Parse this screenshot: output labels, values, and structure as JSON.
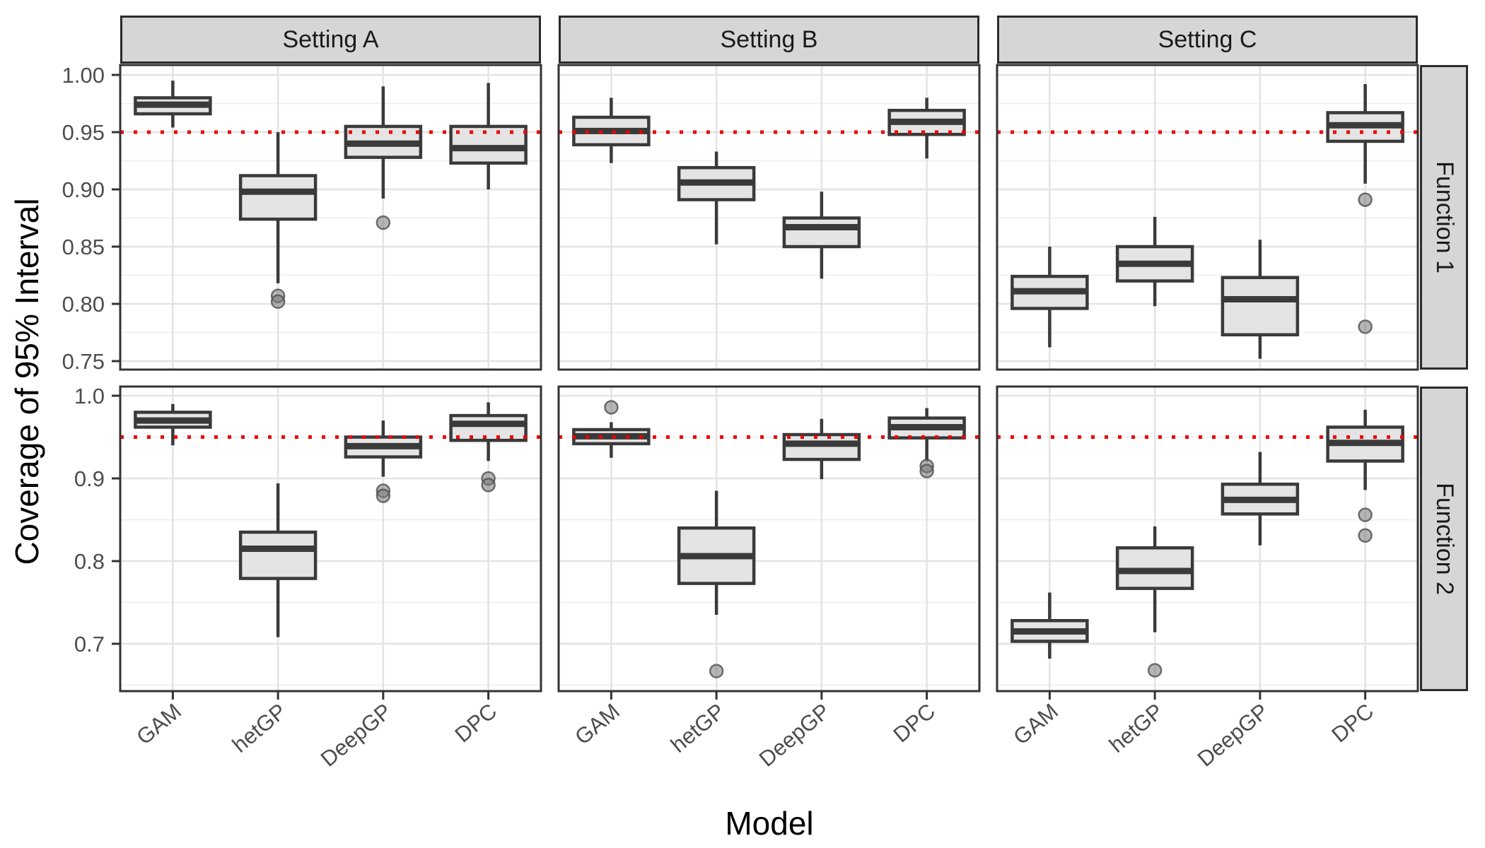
{
  "titles": {
    "y_axis": "Coverage of 95% Interval",
    "x_axis": "Model"
  },
  "facets": {
    "columns": [
      "Setting A",
      "Setting B",
      "Setting C"
    ],
    "rows": [
      "Function 1",
      "Function 2"
    ]
  },
  "models": [
    "GAM",
    "hetGP",
    "DeepGP",
    "DPC"
  ],
  "reference_line": {
    "value": 0.95,
    "color": "#EE0000",
    "style": "dotted"
  },
  "axes": {
    "row1": {
      "tick_values": [
        1.0,
        0.95,
        0.9,
        0.85,
        0.8,
        0.75
      ],
      "tick_labels": [
        "1.00",
        "0.95",
        "0.90",
        "0.85",
        "0.80",
        "0.75"
      ],
      "minor_values": [
        0.975,
        0.925,
        0.875,
        0.825,
        0.775
      ],
      "range": [
        0.7426,
        1.0086
      ]
    },
    "row2": {
      "tick_values": [
        1.0,
        0.9,
        0.8,
        0.7
      ],
      "tick_labels": [
        "1.0",
        "0.9",
        "0.8",
        "0.7"
      ],
      "minor_values": [
        0.95,
        0.85,
        0.75,
        0.65
      ],
      "range": [
        0.6427,
        1.0111
      ]
    }
  },
  "style": {
    "box_fill": "#E4E4E4",
    "box_stroke": "#3A3A3A",
    "grid_major": "#E3E3E3",
    "grid_minor": "#F0F0F0",
    "panel_border": "#333333",
    "strip_fill": "#D6D6D6",
    "tick_label_color": "#4D4D4D",
    "outlier_fill": "#787878",
    "outlier_stroke": "#505050"
  },
  "chart_data": {
    "type": "boxplot",
    "title": "",
    "xlabel": "Model",
    "ylabel": "Coverage of 95% Interval",
    "grid": true,
    "facet_grid": {
      "rows": [
        "Function 1",
        "Function 2"
      ],
      "columns": [
        "Setting A",
        "Setting B",
        "Setting C"
      ]
    },
    "categories": [
      "GAM",
      "hetGP",
      "DeepGP",
      "DPC"
    ],
    "reference_value": 0.95,
    "panels": [
      {
        "row": "Function 1",
        "col": "Setting A",
        "boxes": [
          {
            "model": "GAM",
            "whisker_low": 0.954,
            "q1": 0.966,
            "median": 0.974,
            "q3": 0.98,
            "whisker_high": 0.995,
            "outliers": []
          },
          {
            "model": "hetGP",
            "whisker_low": 0.818,
            "q1": 0.874,
            "median": 0.898,
            "q3": 0.912,
            "whisker_high": 0.95,
            "outliers": [
              0.807,
              0.802
            ]
          },
          {
            "model": "DeepGP",
            "whisker_low": 0.892,
            "q1": 0.928,
            "median": 0.94,
            "q3": 0.955,
            "whisker_high": 0.99,
            "outliers": [
              0.871
            ]
          },
          {
            "model": "DPC",
            "whisker_low": 0.9,
            "q1": 0.923,
            "median": 0.936,
            "q3": 0.955,
            "whisker_high": 0.993,
            "outliers": []
          }
        ]
      },
      {
        "row": "Function 1",
        "col": "Setting B",
        "boxes": [
          {
            "model": "GAM",
            "whisker_low": 0.923,
            "q1": 0.939,
            "median": 0.951,
            "q3": 0.963,
            "whisker_high": 0.98,
            "outliers": []
          },
          {
            "model": "hetGP",
            "whisker_low": 0.852,
            "q1": 0.891,
            "median": 0.906,
            "q3": 0.919,
            "whisker_high": 0.933,
            "outliers": []
          },
          {
            "model": "DeepGP",
            "whisker_low": 0.822,
            "q1": 0.85,
            "median": 0.867,
            "q3": 0.875,
            "whisker_high": 0.898,
            "outliers": []
          },
          {
            "model": "DPC",
            "whisker_low": 0.927,
            "q1": 0.948,
            "median": 0.959,
            "q3": 0.969,
            "whisker_high": 0.98,
            "outliers": []
          }
        ]
      },
      {
        "row": "Function 1",
        "col": "Setting C",
        "boxes": [
          {
            "model": "GAM",
            "whisker_low": 0.762,
            "q1": 0.796,
            "median": 0.811,
            "q3": 0.824,
            "whisker_high": 0.85,
            "outliers": []
          },
          {
            "model": "hetGP",
            "whisker_low": 0.798,
            "q1": 0.82,
            "median": 0.835,
            "q3": 0.85,
            "whisker_high": 0.876,
            "outliers": []
          },
          {
            "model": "DeepGP",
            "whisker_low": 0.752,
            "q1": 0.773,
            "median": 0.804,
            "q3": 0.823,
            "whisker_high": 0.856,
            "outliers": []
          },
          {
            "model": "DPC",
            "whisker_low": 0.905,
            "q1": 0.942,
            "median": 0.956,
            "q3": 0.967,
            "whisker_high": 0.992,
            "outliers": [
              0.891,
              0.78
            ]
          }
        ]
      },
      {
        "row": "Function 2",
        "col": "Setting A",
        "boxes": [
          {
            "model": "GAM",
            "whisker_low": 0.94,
            "q1": 0.962,
            "median": 0.97,
            "q3": 0.98,
            "whisker_high": 0.99,
            "outliers": []
          },
          {
            "model": "hetGP",
            "whisker_low": 0.708,
            "q1": 0.779,
            "median": 0.815,
            "q3": 0.835,
            "whisker_high": 0.894,
            "outliers": []
          },
          {
            "model": "DeepGP",
            "whisker_low": 0.902,
            "q1": 0.926,
            "median": 0.939,
            "q3": 0.95,
            "whisker_high": 0.97,
            "outliers": [
              0.885,
              0.879
            ]
          },
          {
            "model": "DPC",
            "whisker_low": 0.921,
            "q1": 0.946,
            "median": 0.966,
            "q3": 0.976,
            "whisker_high": 0.992,
            "outliers": [
              0.9,
              0.892
            ]
          }
        ]
      },
      {
        "row": "Function 2",
        "col": "Setting B",
        "boxes": [
          {
            "model": "GAM",
            "whisker_low": 0.925,
            "q1": 0.942,
            "median": 0.951,
            "q3": 0.959,
            "whisker_high": 0.968,
            "outliers": [
              0.986
            ]
          },
          {
            "model": "hetGP",
            "whisker_low": 0.735,
            "q1": 0.773,
            "median": 0.806,
            "q3": 0.84,
            "whisker_high": 0.885,
            "outliers": [
              0.667
            ]
          },
          {
            "model": "DeepGP",
            "whisker_low": 0.899,
            "q1": 0.923,
            "median": 0.942,
            "q3": 0.953,
            "whisker_high": 0.972,
            "outliers": []
          },
          {
            "model": "DPC",
            "whisker_low": 0.921,
            "q1": 0.949,
            "median": 0.962,
            "q3": 0.973,
            "whisker_high": 0.985,
            "outliers": [
              0.915,
              0.909
            ]
          }
        ]
      },
      {
        "row": "Function 2",
        "col": "Setting C",
        "boxes": [
          {
            "model": "GAM",
            "whisker_low": 0.682,
            "q1": 0.703,
            "median": 0.715,
            "q3": 0.728,
            "whisker_high": 0.762,
            "outliers": []
          },
          {
            "model": "hetGP",
            "whisker_low": 0.714,
            "q1": 0.767,
            "median": 0.788,
            "q3": 0.816,
            "whisker_high": 0.842,
            "outliers": [
              0.668
            ]
          },
          {
            "model": "DeepGP",
            "whisker_low": 0.819,
            "q1": 0.857,
            "median": 0.874,
            "q3": 0.893,
            "whisker_high": 0.932,
            "outliers": []
          },
          {
            "model": "DPC",
            "whisker_low": 0.886,
            "q1": 0.921,
            "median": 0.943,
            "q3": 0.962,
            "whisker_high": 0.983,
            "outliers": [
              0.856,
              0.831
            ]
          }
        ]
      }
    ]
  }
}
